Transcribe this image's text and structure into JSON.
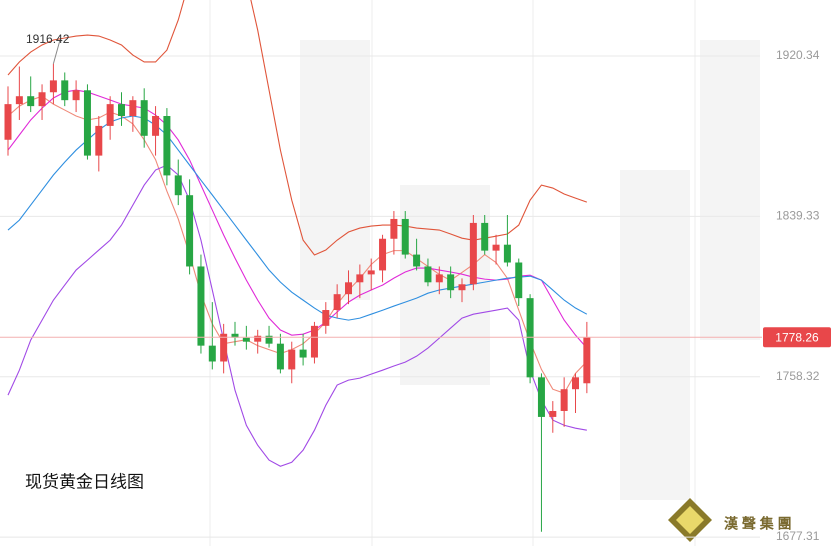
{
  "chart_data": {
    "type": "candlestick",
    "title": "现货黄金日线图",
    "watermark": "漢 聲 集 團",
    "up_color": "#e8474a",
    "down_color": "#27a644",
    "ylim": [
      1672.8,
      1948.6
    ],
    "yticks": [
      1920.34,
      1839.33,
      1758.32,
      1677.31
    ],
    "grid": true,
    "ohlc": [
      [
        1878,
        1905,
        1870,
        1896
      ],
      [
        1896,
        1915,
        1888,
        1900
      ],
      [
        1900,
        1910,
        1892,
        1895
      ],
      [
        1895,
        1906,
        1888,
        1902
      ],
      [
        1902,
        1916.42,
        1896,
        1908
      ],
      [
        1908,
        1912,
        1895,
        1898
      ],
      [
        1898,
        1908,
        1892,
        1903
      ],
      [
        1903,
        1906,
        1868,
        1870
      ],
      [
        1870,
        1890,
        1862,
        1885
      ],
      [
        1885,
        1900,
        1878,
        1896
      ],
      [
        1896,
        1902,
        1885,
        1890
      ],
      [
        1890,
        1900,
        1882,
        1898
      ],
      [
        1898,
        1904,
        1874,
        1880
      ],
      [
        1880,
        1895,
        1870,
        1890
      ],
      [
        1890,
        1894,
        1855,
        1860
      ],
      [
        1860,
        1868,
        1845,
        1850
      ],
      [
        1850,
        1858,
        1810,
        1814
      ],
      [
        1814,
        1820,
        1770,
        1774
      ],
      [
        1774,
        1796,
        1762,
        1766
      ],
      [
        1766,
        1785,
        1760,
        1780
      ],
      [
        1780,
        1786,
        1774,
        1778
      ],
      [
        1778,
        1784,
        1772,
        1776
      ],
      [
        1776,
        1782,
        1770,
        1779
      ],
      [
        1779,
        1784,
        1773,
        1775
      ],
      [
        1775,
        1780,
        1760,
        1762
      ],
      [
        1762,
        1776,
        1755,
        1772
      ],
      [
        1772,
        1780,
        1764,
        1768
      ],
      [
        1768,
        1786,
        1765,
        1784
      ],
      [
        1784,
        1796,
        1780,
        1792
      ],
      [
        1792,
        1805,
        1788,
        1800
      ],
      [
        1800,
        1812,
        1795,
        1806
      ],
      [
        1806,
        1815,
        1798,
        1810
      ],
      [
        1810,
        1818,
        1802,
        1812
      ],
      [
        1812,
        1830,
        1806,
        1828
      ],
      [
        1828,
        1842,
        1820,
        1838
      ],
      [
        1838,
        1842,
        1818,
        1820
      ],
      [
        1820,
        1828,
        1812,
        1814
      ],
      [
        1814,
        1818,
        1804,
        1806
      ],
      [
        1806,
        1814,
        1800,
        1810
      ],
      [
        1810,
        1814,
        1798,
        1802
      ],
      [
        1802,
        1808,
        1796,
        1805
      ],
      [
        1805,
        1840,
        1802,
        1836
      ],
      [
        1836,
        1840,
        1820,
        1822
      ],
      [
        1822,
        1830,
        1815,
        1825
      ],
      [
        1825,
        1840,
        1814,
        1816
      ],
      [
        1816,
        1818,
        1794,
        1798
      ],
      [
        1798,
        1800,
        1755,
        1758
      ],
      [
        1758,
        1760,
        1680,
        1738
      ],
      [
        1738,
        1746,
        1730,
        1741
      ],
      [
        1741,
        1758,
        1733,
        1752
      ],
      [
        1752,
        1760,
        1740,
        1758
      ],
      [
        1755,
        1786,
        1750,
        1778.26
      ]
    ],
    "lines": [
      {
        "color": "#f08a7a",
        "values": [
          1890,
          1895,
          1898,
          1900,
          1896,
          1893,
          1890,
          1888,
          1889,
          1892,
          1890,
          1886,
          1878,
          1868,
          1852,
          1838,
          1820,
          1800,
          1785,
          1775,
          1776,
          1777,
          1774,
          1772,
          1770,
          1772,
          1775,
          1780,
          1786,
          1795,
          1802,
          1808,
          1815,
          1820,
          1822,
          1822,
          1818,
          1814,
          1810,
          1807,
          1811,
          1815,
          1820,
          1816,
          1808,
          1792,
          1776,
          1762,
          1752,
          1750,
          1760,
          1766
        ]
      },
      {
        "color": "#e02ad8",
        "values": [
          1872.8,
          1880.4,
          1888.0,
          1894.0,
          1899.1,
          1902.1,
          1903.1,
          1902.1,
          1900.1,
          1898.1,
          1896.0,
          1895.0,
          1894.0,
          1890.5,
          1885.4,
          1877.9,
          1867.8,
          1855.1,
          1842.5,
          1829.9,
          1818.2,
          1807.1,
          1797.0,
          1787.9,
          1781.9,
          1779.3,
          1779.8,
          1781.9,
          1785.9,
          1791.0,
          1796.0,
          1799.5,
          1802.1,
          1804.6,
          1808.1,
          1811.2,
          1813.2,
          1813.2,
          1812.2,
          1811.2,
          1810.1,
          1808.6,
          1807.6,
          1807.1,
          1807.6,
          1809.1,
          1809.6,
          1807.1,
          1797.0,
          1786.9,
          1779.3,
          1772.8
        ]
      },
      {
        "color": "#2f8fe0",
        "values": [
          1832.4,
          1837.4,
          1845.0,
          1852.6,
          1860.2,
          1866.7,
          1872.8,
          1877.9,
          1882.9,
          1887.0,
          1889.0,
          1890.0,
          1889.0,
          1885.4,
          1880.4,
          1872.8,
          1865.2,
          1857.6,
          1850.1,
          1842.5,
          1834.9,
          1827.3,
          1819.8,
          1812.2,
          1806.1,
          1801.0,
          1797.0,
          1793.0,
          1789.4,
          1787.9,
          1786.9,
          1787.9,
          1789.9,
          1791.9,
          1794.0,
          1796.0,
          1798.0,
          1800.5,
          1802.1,
          1803.1,
          1804.1,
          1805.1,
          1806.1,
          1807.1,
          1808.1,
          1808.6,
          1809.1,
          1807.1,
          1802.1,
          1797.0,
          1793.0,
          1789.9
        ]
      },
      {
        "color": "#e0553a",
        "values": [
          1910.7,
          1917.3,
          1922.3,
          1925.9,
          1928.4,
          1929.4,
          1930.4,
          1930.9,
          1930.4,
          1928.4,
          1925.9,
          1920.8,
          1917.3,
          1917.3,
          1923.3,
          1938.5,
          1958.7,
          1978.9,
          1989.0,
          1989.0,
          1978.9,
          1958.7,
          1933.4,
          1903.1,
          1872.8,
          1847.5,
          1827.3,
          1819.8,
          1822.3,
          1827.3,
          1831.4,
          1833.4,
          1834.4,
          1834.9,
          1834.9,
          1834.4,
          1833.4,
          1832.9,
          1832.4,
          1830.4,
          1828.3,
          1827.3,
          1828.3,
          1829.3,
          1830.4,
          1834.9,
          1847.5,
          1855.1,
          1853.6,
          1850.6,
          1848.5,
          1846.5
        ]
      },
      {
        "color": "#a14ae6",
        "values": [
          1749.0,
          1761.6,
          1776.8,
          1786.9,
          1797.0,
          1804.6,
          1812.2,
          1817.2,
          1822.3,
          1827.3,
          1834.9,
          1845.0,
          1855.1,
          1862.7,
          1865.2,
          1860.2,
          1847.5,
          1827.3,
          1802.1,
          1776.8,
          1751.5,
          1733.8,
          1723.7,
          1716.2,
          1713.1,
          1715.1,
          1721.2,
          1731.3,
          1743.9,
          1754.1,
          1756.6,
          1757.6,
          1759.6,
          1761.6,
          1763.7,
          1765.7,
          1768.7,
          1772.8,
          1777.8,
          1782.9,
          1787.9,
          1789.9,
          1790.9,
          1791.9,
          1793.0,
          1786.9,
          1761.6,
          1746.5,
          1736.4,
          1733.8,
          1732.3,
          1731.3
        ]
      }
    ]
  }
}
